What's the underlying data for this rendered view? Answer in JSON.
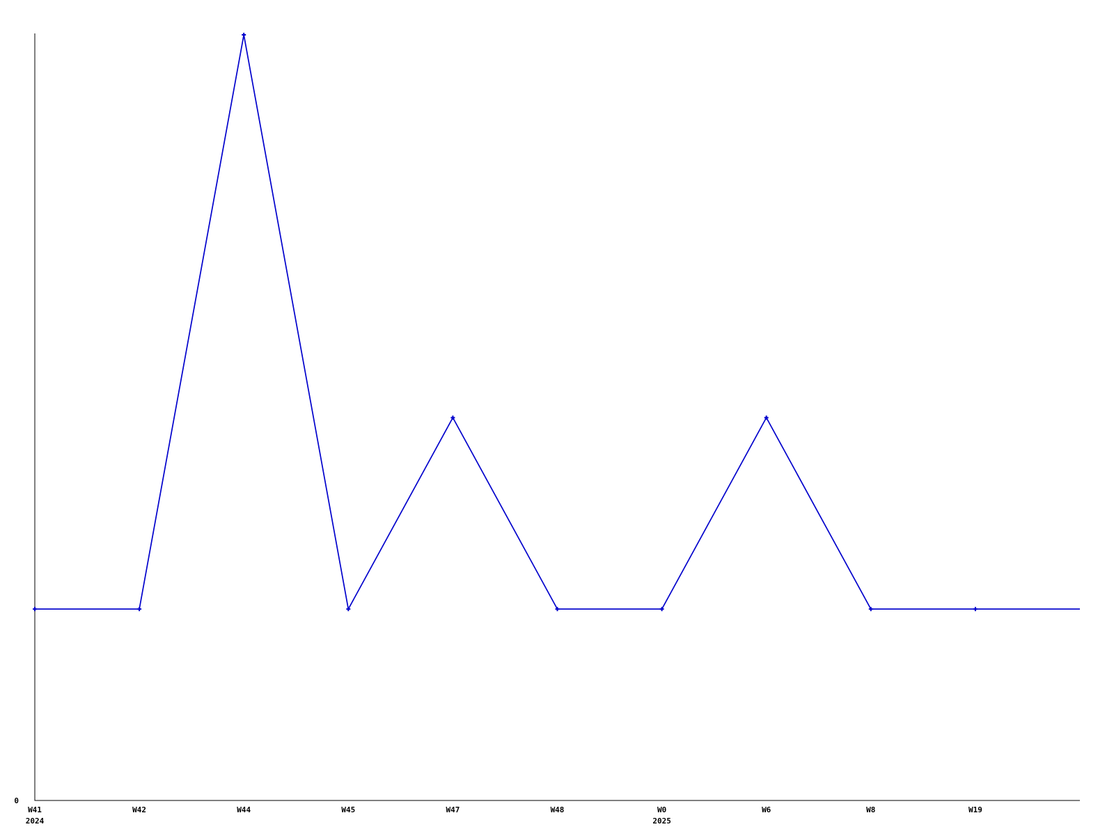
{
  "chart_data": {
    "type": "line",
    "title": "",
    "categories": [
      "W41",
      "W42",
      "W44",
      "W45",
      "W47",
      "W48",
      "W0",
      "W6",
      "W8",
      "W19"
    ],
    "years": [
      "2024",
      "",
      "",
      "",
      "",
      "",
      "2025",
      "",
      "",
      ""
    ],
    "values": [
      1,
      1,
      4,
      1,
      2,
      1,
      1,
      2,
      1,
      1
    ],
    "trailing_value": 1,
    "ylim": [
      0,
      4
    ],
    "y_axis_zero_label": "0",
    "line_color": "#0000cc",
    "axis_color": "#000000",
    "marker_style": "plus",
    "grid": false,
    "legend_position": "none"
  }
}
